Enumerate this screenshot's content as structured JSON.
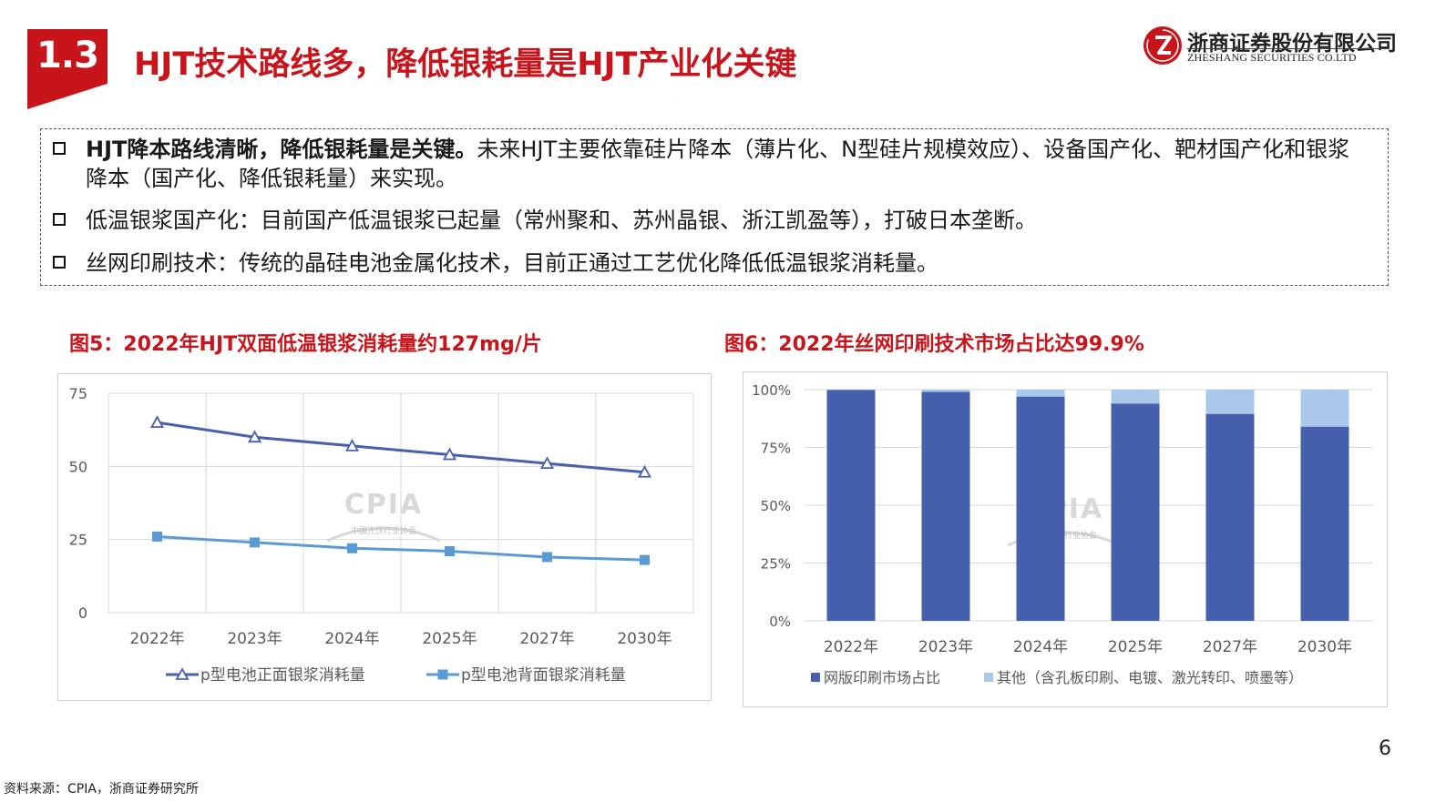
{
  "header": {
    "section_number": "1.3",
    "title": "HJT技术路线多，降低银耗量是HJT产业化关键",
    "logo_cn": "浙商证券股份有限公司",
    "logo_en": "ZHESHANG SECURITIES CO.LTD"
  },
  "bullets": [
    {
      "bold": "HJT降本路线清晰，降低银耗量是关键。",
      "text": "未来HJT主要依靠硅片降本（薄片化、N型硅片规模效应）、设备国产化、靶材国产化和银浆降本（国产化、降低银耗量）来实现。"
    },
    {
      "bold": "",
      "text": "低温银浆国产化：目前国产低温银浆已起量（常州聚和、苏州晶银、浙江凯盈等），打破日本垄断。"
    },
    {
      "bold": "",
      "text": "丝网印刷技术：传统的晶硅电池金属化技术，目前正通过工艺优化降低低温银浆消耗量。"
    }
  ],
  "fig5_title": "图5：2022年HJT双面低温银浆消耗量约127mg/片",
  "fig6_title": "图6：2022年丝网印刷技术市场占比达99.9%",
  "watermark": {
    "brand": "CPIA",
    "sub": "中国光伏行业协会"
  },
  "chart_data": [
    {
      "type": "line",
      "categories": [
        "2022年",
        "2023年",
        "2024年",
        "2025年",
        "2027年",
        "2030年"
      ],
      "series": [
        {
          "name": "p型电池正面银浆消耗量",
          "values": [
            65,
            60,
            57,
            54,
            51,
            48
          ],
          "color": "#4a5fae",
          "marker": "triangle"
        },
        {
          "name": "p型电池背面银浆消耗量",
          "values": [
            26,
            24,
            22,
            21,
            19,
            18
          ],
          "color": "#5b9bd5",
          "marker": "square"
        }
      ],
      "y_ticks": [
        "0",
        "25",
        "50",
        "75"
      ],
      "ylim": [
        0,
        75
      ],
      "grid": true,
      "legend": "bottom"
    },
    {
      "type": "bar",
      "stacked": true,
      "categories": [
        "2022年",
        "2023年",
        "2024年",
        "2025年",
        "2027年",
        "2030年"
      ],
      "series": [
        {
          "name": "网版印刷市场占比",
          "values": [
            99.9,
            99,
            97,
            94,
            89.5,
            84
          ],
          "color": "#4660ad"
        },
        {
          "name": "其他（含孔板印刷、电镀、激光转印、喷墨等）",
          "values": [
            0.1,
            1,
            3,
            6,
            10.5,
            16
          ],
          "color": "#a9c8ea"
        }
      ],
      "y_ticks": [
        "0%",
        "25%",
        "50%",
        "75%",
        "100%"
      ],
      "ylim": [
        0,
        100
      ],
      "grid": true,
      "legend": "bottom"
    }
  ],
  "footer": {
    "page_number": "6",
    "source": "资料来源：CPIA，浙商证券研究所"
  }
}
